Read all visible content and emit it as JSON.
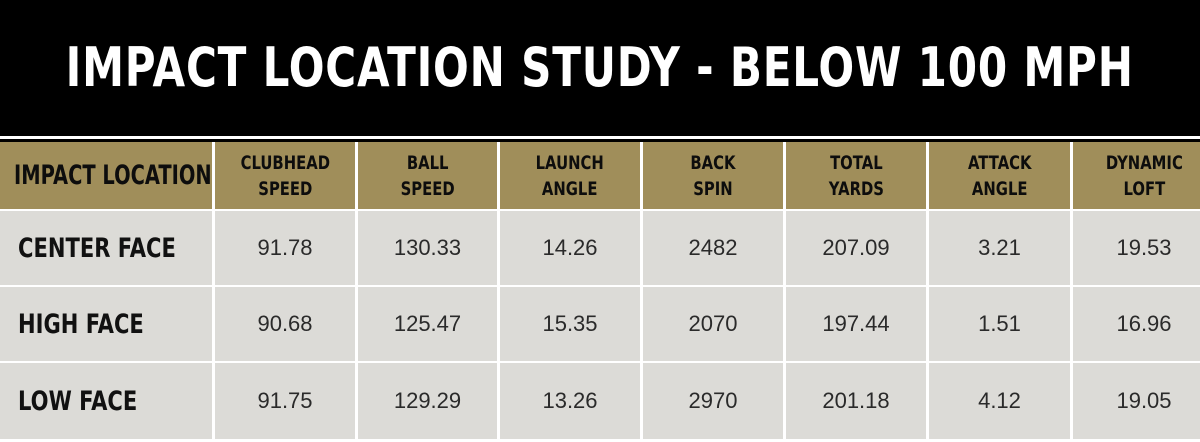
{
  "title": "IMPACT LOCATION STUDY - BELOW 100 MPH",
  "colors": {
    "banner_bg": "#000000",
    "header_bg": "#a08e5a",
    "row_bg": "#dcdbd7",
    "title_text": "#ffffff"
  },
  "chart_data": {
    "type": "table",
    "title": "IMPACT LOCATION STUDY - BELOW 100 MPH",
    "columns": [
      "IMPACT LOCATION",
      "CLUBHEAD\nSPEED",
      "BALL\nSPEED",
      "LAUNCH\nANGLE",
      "BACK\nSPIN",
      "TOTAL\nYARDS",
      "ATTACK\nANGLE",
      "DYNAMIC\nLOFT"
    ],
    "rows": [
      [
        "CENTER FACE",
        "91.78",
        "130.33",
        "14.26",
        "2482",
        "207.09",
        "3.21",
        "19.53"
      ],
      [
        "HIGH FACE",
        "90.68",
        "125.47",
        "15.35",
        "2070",
        "197.44",
        "1.51",
        "16.96"
      ],
      [
        "LOW FACE",
        "91.75",
        "129.29",
        "13.26",
        "2970",
        "201.18",
        "4.12",
        "19.05"
      ]
    ]
  }
}
